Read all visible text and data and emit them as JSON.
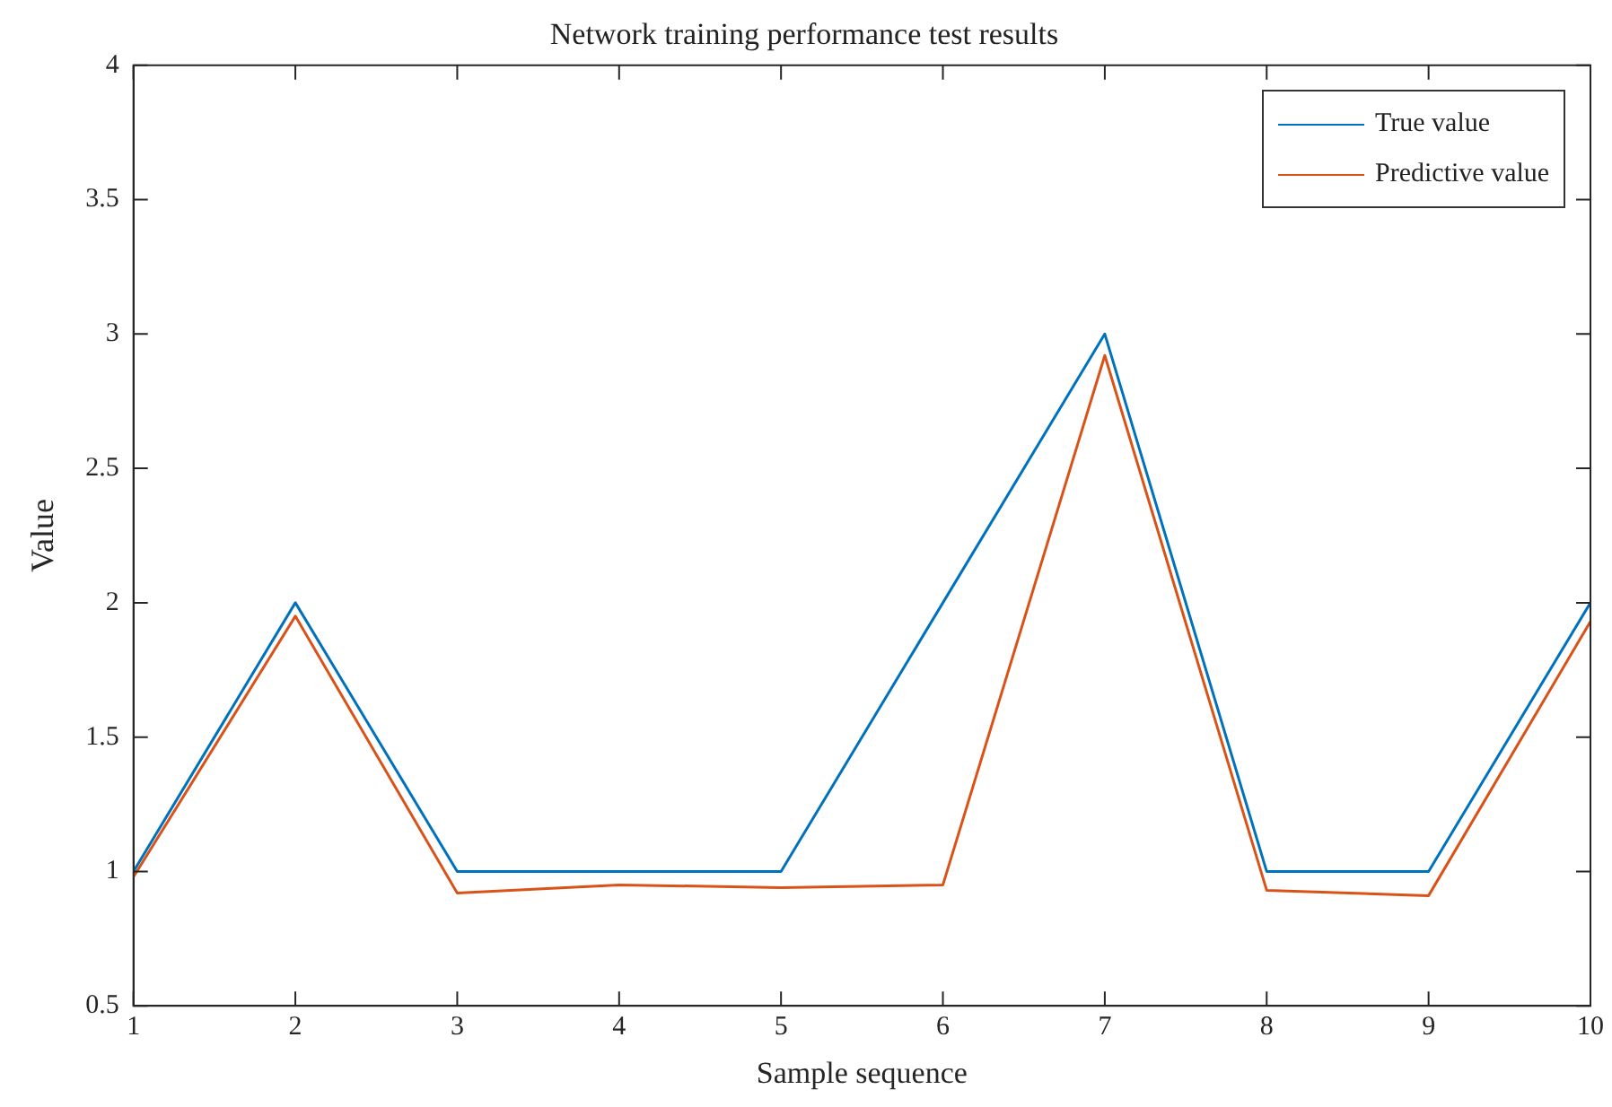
{
  "chart_data": {
    "type": "line",
    "title": "Network training performance test results",
    "xlabel": "Sample sequence",
    "ylabel": "Value",
    "x": [
      1,
      2,
      3,
      4,
      5,
      6,
      7,
      8,
      9,
      10
    ],
    "series": [
      {
        "name": "True value",
        "color": "#0072bd",
        "values": [
          1,
          2,
          1,
          1,
          1,
          2,
          3,
          1,
          1,
          2
        ]
      },
      {
        "name": "Predictive value",
        "color": "#d95319",
        "values": [
          0.98,
          1.95,
          0.92,
          0.95,
          0.94,
          0.95,
          2.92,
          0.93,
          0.91,
          1.93
        ]
      }
    ],
    "xlim": [
      1,
      10
    ],
    "xticks": [
      1,
      2,
      3,
      4,
      5,
      6,
      7,
      8,
      9,
      10
    ],
    "ylim": [
      0.5,
      4
    ],
    "yticks": [
      0.5,
      1,
      1.5,
      2,
      2.5,
      3,
      3.5,
      4
    ],
    "grid": false,
    "legend": "top right",
    "marker": "none",
    "line_style": "solid"
  }
}
